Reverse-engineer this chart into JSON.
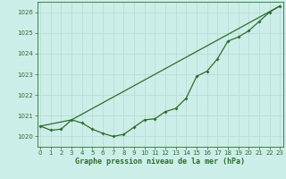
{
  "xlabel": "Graphe pression niveau de la mer (hPa)",
  "bg_color": "#cceee8",
  "grid_color": "#aaddcc",
  "line_color": "#2d6e2d",
  "ylim": [
    1019.5,
    1026.5
  ],
  "xlim": [
    -0.3,
    23.3
  ],
  "yticks": [
    1020,
    1021,
    1022,
    1023,
    1024,
    1025,
    1026
  ],
  "xticks": [
    0,
    1,
    2,
    3,
    4,
    5,
    6,
    7,
    8,
    9,
    10,
    11,
    12,
    13,
    14,
    15,
    16,
    17,
    18,
    19,
    20,
    21,
    22,
    23
  ],
  "line1_x": [
    0,
    1,
    2,
    3,
    4,
    5,
    6,
    7,
    8,
    9,
    10,
    11,
    12,
    13,
    14,
    15,
    16,
    17,
    18,
    19,
    20,
    21,
    22,
    23
  ],
  "line1_y": [
    1020.5,
    1020.3,
    1020.35,
    1020.8,
    1020.65,
    1020.35,
    1020.15,
    1020.0,
    1020.1,
    1020.45,
    1020.8,
    1020.85,
    1021.2,
    1021.35,
    1021.85,
    1022.9,
    1023.15,
    1023.75,
    1024.6,
    1024.8,
    1025.1,
    1025.55,
    1026.0,
    1026.3
  ],
  "line2_x": [
    0,
    3,
    23
  ],
  "line2_y": [
    1020.5,
    1020.8,
    1026.3
  ],
  "tick_fontsize": 5.0,
  "label_fontsize": 6.0,
  "label_fontweight": "bold"
}
